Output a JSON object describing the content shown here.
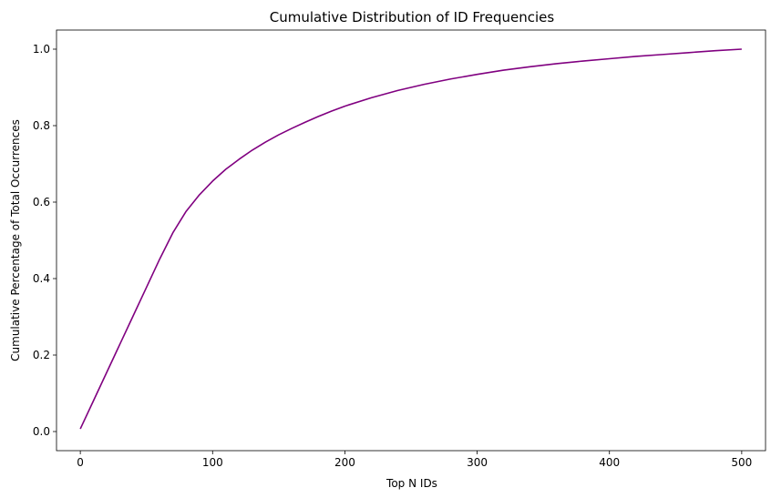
{
  "chart_data": {
    "type": "line",
    "title": "Cumulative Distribution of ID Frequencies",
    "xlabel": "Top N IDs",
    "ylabel": "Cumulative Percentage of Total Occurrences",
    "xlim": [
      -18,
      518
    ],
    "ylim": [
      -0.05,
      1.05
    ],
    "x_ticks": [
      0,
      100,
      200,
      300,
      400,
      500
    ],
    "y_ticks": [
      0.0,
      0.2,
      0.4,
      0.6,
      0.8,
      1.0
    ],
    "x_tick_labels": [
      "0",
      "100",
      "200",
      "300",
      "400",
      "500"
    ],
    "y_tick_labels": [
      "0.0",
      "0.2",
      "0.4",
      "0.6",
      "0.8",
      "1.0"
    ],
    "grid": false,
    "legend": "none",
    "series": [
      {
        "color": "#800080",
        "x": [
          0,
          10,
          20,
          30,
          40,
          50,
          60,
          70,
          80,
          90,
          100,
          110,
          120,
          130,
          140,
          150,
          160,
          170,
          180,
          190,
          200,
          220,
          240,
          260,
          280,
          300,
          320,
          340,
          360,
          380,
          400,
          420,
          440,
          460,
          480,
          500
        ],
        "y": [
          0.007,
          0.081,
          0.155,
          0.229,
          0.303,
          0.377,
          0.451,
          0.52,
          0.576,
          0.619,
          0.655,
          0.686,
          0.712,
          0.736,
          0.757,
          0.776,
          0.793,
          0.809,
          0.824,
          0.838,
          0.851,
          0.873,
          0.892,
          0.908,
          0.922,
          0.934,
          0.945,
          0.954,
          0.962,
          0.969,
          0.975,
          0.981,
          0.986,
          0.991,
          0.996,
          1.0
        ]
      }
    ]
  }
}
